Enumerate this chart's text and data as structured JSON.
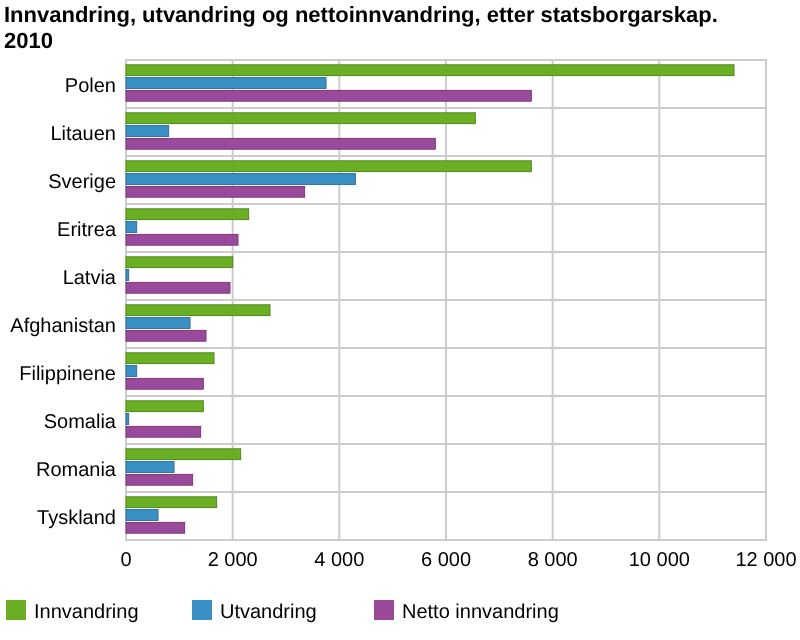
{
  "chart_data": {
    "type": "bar",
    "orientation": "horizontal",
    "title": "Innvandring, utvandring og nettoinnvandring, etter statsborgarskap. 2010",
    "categories": [
      "Polen",
      "Litauen",
      "Sverige",
      "Eritrea",
      "Latvia",
      "Afghanistan",
      "Filippinene",
      "Somalia",
      "Romania",
      "Tyskland"
    ],
    "series": [
      {
        "name": "Innvandring",
        "color": "#6aaf23",
        "values": [
          11400,
          6550,
          7600,
          2300,
          2000,
          2700,
          1650,
          1450,
          2150,
          1700
        ]
      },
      {
        "name": "Utvandring",
        "color": "#3a8fc4",
        "values": [
          3750,
          800,
          4300,
          200,
          50,
          1200,
          200,
          50,
          900,
          600
        ]
      },
      {
        "name": "Netto innvandring",
        "color": "#9b4a9b",
        "values": [
          7600,
          5800,
          3350,
          2100,
          1950,
          1500,
          1450,
          1400,
          1250,
          1100
        ]
      }
    ],
    "xlim": [
      0,
      12000
    ],
    "xticks": [
      {
        "value": 0,
        "label": "0"
      },
      {
        "value": 2000,
        "label": "2 000"
      },
      {
        "value": 4000,
        "label": "4 000"
      },
      {
        "value": 6000,
        "label": "6 000"
      },
      {
        "value": 8000,
        "label": "8 000"
      },
      {
        "value": 10000,
        "label": "10 000"
      },
      {
        "value": 12000,
        "label": "12 000"
      }
    ],
    "grid": true,
    "legend": "bottom"
  }
}
